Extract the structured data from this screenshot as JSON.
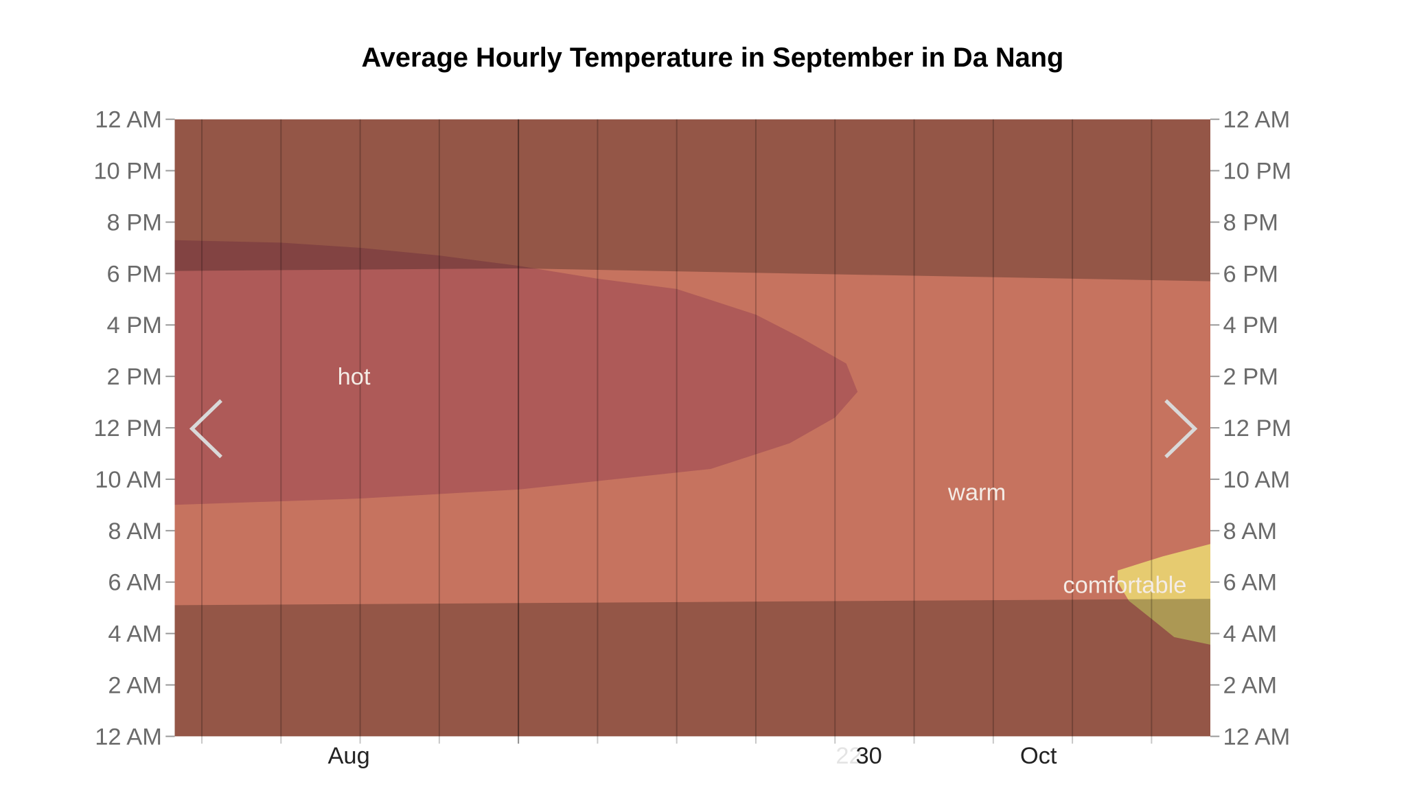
{
  "chart_data": {
    "type": "heatmap",
    "title": "Average Hourly Temperature in September in Da Nang",
    "xlim": [
      "Jul 17",
      "Oct 16"
    ],
    "ylim_hours": [
      0,
      24
    ],
    "y_ticks": [
      {
        "hour": 24,
        "label": "12 AM"
      },
      {
        "hour": 22,
        "label": "10 PM"
      },
      {
        "hour": 20,
        "label": "8 PM"
      },
      {
        "hour": 18,
        "label": "6 PM"
      },
      {
        "hour": 16,
        "label": "4 PM"
      },
      {
        "hour": 14,
        "label": "2 PM"
      },
      {
        "hour": 12,
        "label": "12 PM"
      },
      {
        "hour": 10,
        "label": "10 AM"
      },
      {
        "hour": 8,
        "label": "8 AM"
      },
      {
        "hour": 6,
        "label": "6 AM"
      },
      {
        "hour": 4,
        "label": "4 AM"
      },
      {
        "hour": 2,
        "label": "2 AM"
      },
      {
        "hour": 0,
        "label": "12 AM"
      }
    ],
    "x_ticks": [
      {
        "date": "Aug 1",
        "label": "Aug"
      },
      {
        "date": "Sep 16",
        "label": "30",
        "ghost": "22"
      },
      {
        "date": "Oct 1",
        "label": "Oct"
      }
    ],
    "gridlines_x": [
      "Jul 19",
      "Jul 26",
      "Aug 2",
      "Aug 9",
      "Aug 16",
      "Aug 23",
      "Aug 30",
      "Sep 6",
      "Sep 13",
      "Sep 20",
      "Sep 27",
      "Oct 4",
      "Oct 11"
    ],
    "grid": true,
    "background_category": "warm",
    "categories": [
      {
        "name": "warm",
        "color": "#C6735F",
        "label": "warm",
        "label_at": {
          "date": "Sep 23",
          "hour": 9.5
        }
      },
      {
        "name": "hot",
        "color": "#AE5A58",
        "label": "hot",
        "label_at": {
          "date": "Jul 31",
          "hour": 14
        },
        "boundary": [
          {
            "date": "Jul 17",
            "hour": 19.3
          },
          {
            "date": "Jul 26",
            "hour": 19.2
          },
          {
            "date": "Aug 2",
            "hour": 19.0
          },
          {
            "date": "Aug 9",
            "hour": 18.7
          },
          {
            "date": "Aug 16",
            "hour": 18.3
          },
          {
            "date": "Aug 23",
            "hour": 17.8
          },
          {
            "date": "Aug 30",
            "hour": 17.4
          },
          {
            "date": "Sep 6",
            "hour": 16.4
          },
          {
            "date": "Sep 10",
            "hour": 15.5
          },
          {
            "date": "Sep 14",
            "hour": 14.5
          },
          {
            "date": "Sep 15",
            "hour": 13.4
          },
          {
            "date": "Sep 13",
            "hour": 12.4
          },
          {
            "date": "Sep 9",
            "hour": 11.4
          },
          {
            "date": "Sep 2",
            "hour": 10.4
          },
          {
            "date": "Aug 16",
            "hour": 9.6
          },
          {
            "date": "Aug 2",
            "hour": 9.25
          },
          {
            "date": "Jul 17",
            "hour": 9.0
          }
        ]
      },
      {
        "name": "comfortable",
        "color": "#E6CB70",
        "label": "comfortable",
        "label_at": {
          "date": "Oct 8",
          "hour": 5.9
        },
        "boundary": [
          {
            "date": "Oct 8",
            "hour": 6.45
          },
          {
            "date": "Oct 12",
            "hour": 7.0
          },
          {
            "date": "Oct 16",
            "hour": 7.5
          },
          {
            "date": "Oct 16",
            "hour": 3.55
          },
          {
            "date": "Oct 13",
            "hour": 3.86
          },
          {
            "date": "Oct 11",
            "hour": 4.57
          },
          {
            "date": "Oct 9",
            "hour": 5.27
          },
          {
            "date": "Oct 8",
            "hour": 6.0
          }
        ]
      }
    ],
    "night_shade": {
      "color": "#000000",
      "opacity": 0.25,
      "sunset": [
        {
          "date": "Jul 17",
          "hour": 18.1
        },
        {
          "date": "Aug 16",
          "hour": 18.2
        },
        {
          "date": "Oct 16",
          "hour": 17.7
        }
      ],
      "sunrise": [
        {
          "date": "Jul 17",
          "hour": 5.1
        },
        {
          "date": "Oct 16",
          "hour": 5.35
        }
      ]
    }
  },
  "navigation": {
    "previous_icon": "chevron-left-icon",
    "next_icon": "chevron-right-icon"
  }
}
